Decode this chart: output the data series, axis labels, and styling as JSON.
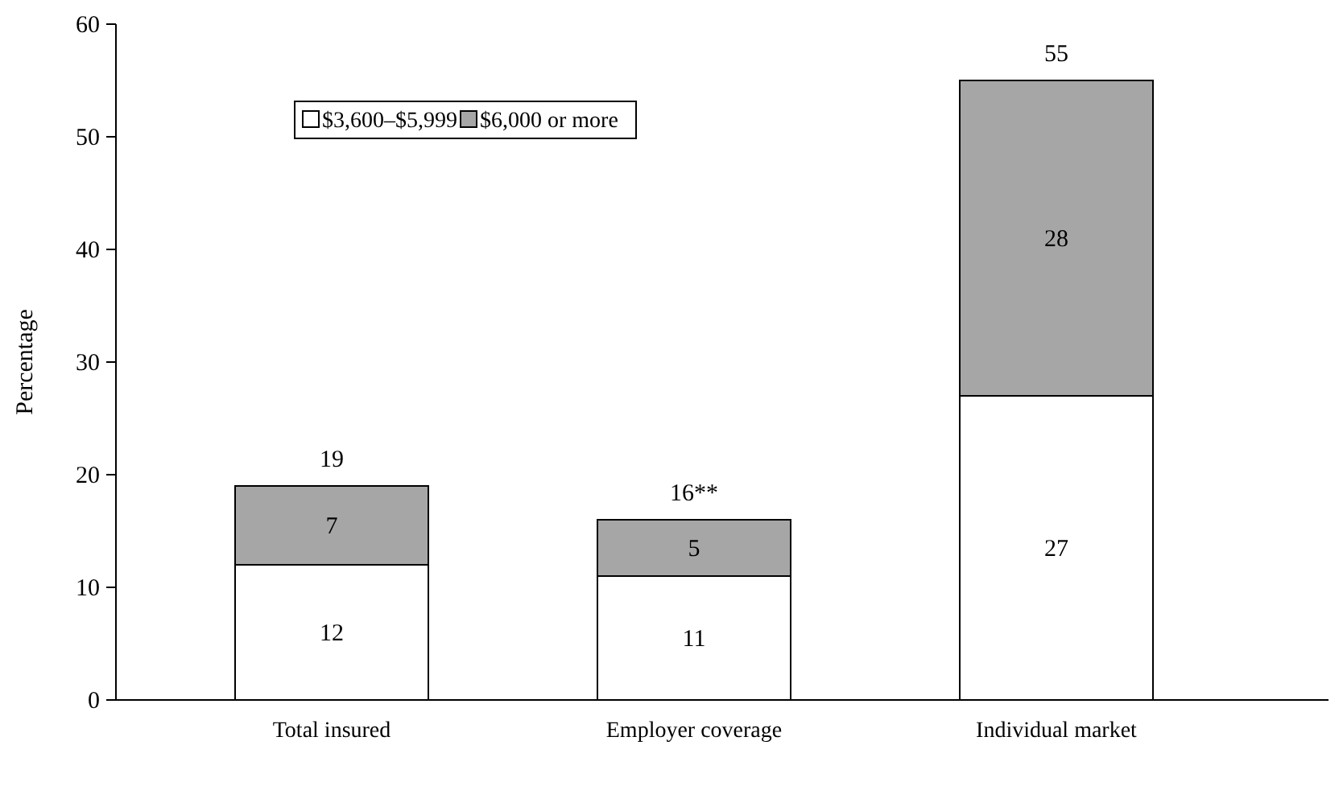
{
  "chart_data": {
    "type": "bar",
    "stacked": true,
    "ylabel": "Percentage",
    "categories": [
      "Total insured",
      "Employer coverage",
      "Individual market"
    ],
    "series": [
      {
        "name": "$3,600–$5,999",
        "color": "#ffffff",
        "values": [
          12,
          11,
          27
        ]
      },
      {
        "name": "$6,000 or more",
        "color": "#a6a6a6",
        "values": [
          7,
          5,
          28
        ]
      }
    ],
    "ylim": [
      0,
      60
    ],
    "yticks": [
      0,
      10,
      20,
      30,
      40,
      50,
      60
    ],
    "grid": false,
    "legend": "top left",
    "data_labels": true,
    "totals": [
      "19",
      "16**",
      "55"
    ]
  }
}
